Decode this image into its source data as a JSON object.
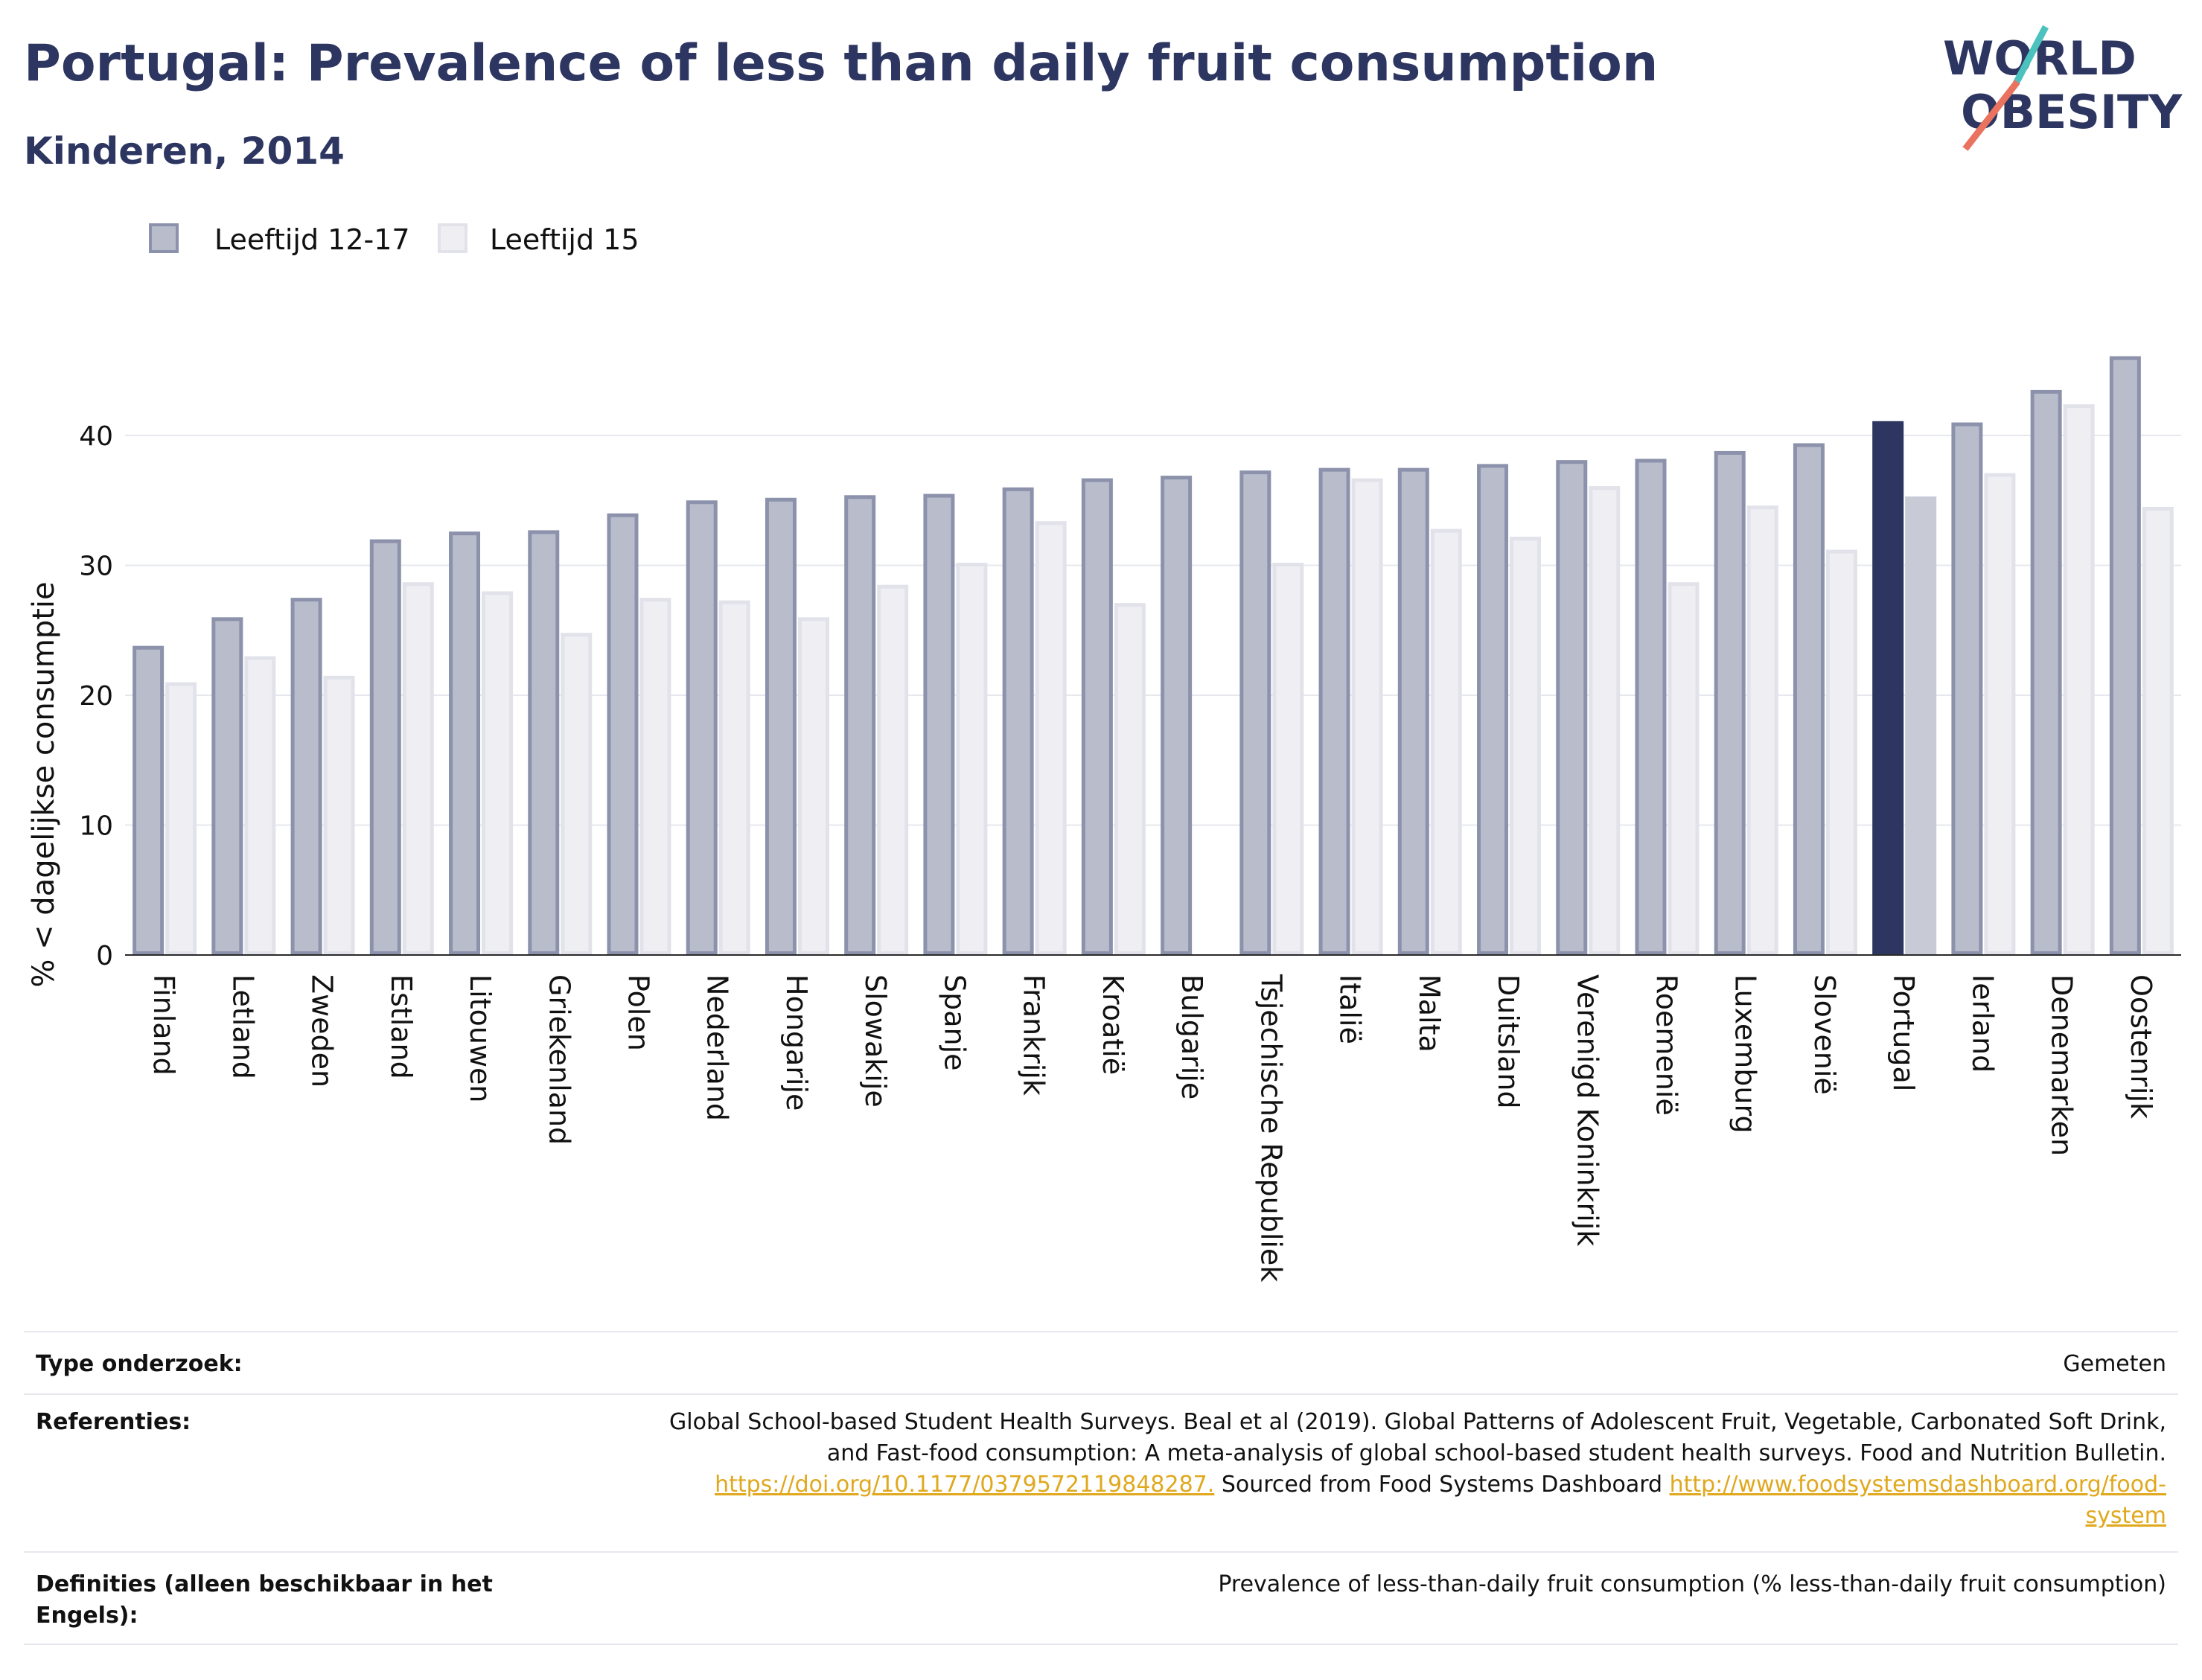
{
  "header": {
    "title": "Portugal: Prevalence of less than daily fruit consumption",
    "subtitle": "Kinderen, 2014"
  },
  "logo": {
    "line1": "WORLD",
    "line2": "OBESITY"
  },
  "colors": {
    "primary": "#2d3561",
    "series1_fill": "#b9bccb",
    "series1_stroke": "#8c92ab",
    "series2_fill": "#eeeef3",
    "series2_stroke": "#e2e3ea",
    "highlight1": "#2d3561",
    "highlight2": "#c8cad6",
    "logo_teal": "#4cc2bf",
    "logo_coral": "#e9735f",
    "link": "#e0a81d"
  },
  "chart_data": {
    "type": "bar",
    "ylabel": "% < dagelijkse consumptie",
    "ylim": [
      0,
      46
    ],
    "yticks": [
      0,
      10,
      20,
      30,
      40
    ],
    "highlight": "Portugal",
    "legend_position": "top-left",
    "grid": true,
    "categories": [
      "Finland",
      "Letland",
      "Zweden",
      "Estland",
      "Litouwen",
      "Griekenland",
      "Polen",
      "Nederland",
      "Hongarije",
      "Slowakije",
      "Spanje",
      "Frankrijk",
      "Kroatië",
      "Bulgarije",
      "Tsjechische Republiek",
      "Italië",
      "Malta",
      "Duitsland",
      "Verenigd Koninkrijk",
      "Roemenië",
      "Luxemburg",
      "Slovenië",
      "Portugal",
      "Ierland",
      "Denemarken",
      "Oostenrijk"
    ],
    "series": [
      {
        "name": "Leeftijd 12-17",
        "values": [
          23.8,
          26.0,
          27.5,
          32.0,
          32.6,
          32.7,
          34.0,
          35.0,
          35.2,
          35.4,
          35.5,
          36.0,
          36.7,
          36.9,
          37.3,
          37.5,
          37.5,
          37.8,
          38.1,
          38.2,
          38.8,
          39.4,
          41.1,
          41.0,
          43.5,
          46.1
        ]
      },
      {
        "name": "Leeftijd 15",
        "values": [
          21.0,
          23.0,
          21.5,
          28.7,
          28.0,
          24.8,
          27.5,
          27.3,
          26.0,
          28.5,
          30.2,
          33.4,
          27.1,
          null,
          30.2,
          36.7,
          32.8,
          32.2,
          36.1,
          28.7,
          34.6,
          31.2,
          35.3,
          37.1,
          42.4,
          34.5
        ]
      }
    ]
  },
  "meta": {
    "type_key": "Type onderzoek:",
    "type_val": "Gemeten",
    "ref_key": "Referenties:",
    "ref_line1": "Global School-based Student Health Surveys. Beal et al (2019). Global Patterns of Adolescent Fruit, Vegetable, Carbonated Soft Drink,",
    "ref_line2": "and Fast-food consumption: A meta-analysis of global school-based student health surveys. Food and Nutrition Bulletin.",
    "ref_link1": "https://doi.org/10.1177/0379572119848287.",
    "ref_mid": " Sourced from Food Systems Dashboard ",
    "ref_link2a": "http://www.foodsystemsdashboard.org/food-",
    "ref_link2b": "system",
    "def_key_line1": "Definities (alleen beschikbaar in het",
    "def_key_line2": "Engels):",
    "def_val": "Prevalence of less-than-daily fruit consumption (% less-than-daily fruit consumption)"
  }
}
